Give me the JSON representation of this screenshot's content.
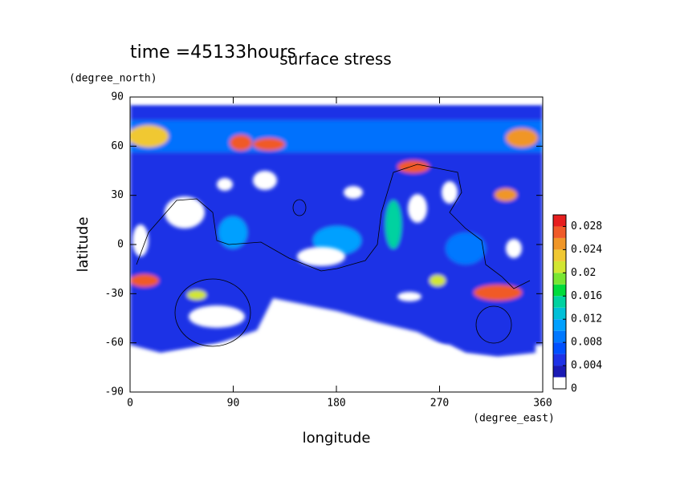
{
  "chart_data": {
    "type": "contour",
    "title": "surface stress",
    "annotation": "time =45133hours",
    "x_label": "longitude",
    "x_unit": "(degree_east)",
    "y_label": "latitude",
    "y_unit": "(degree_north)",
    "xlim": [
      0,
      360
    ],
    "xticks": [
      0,
      90,
      180,
      270,
      360
    ],
    "ylim": [
      -90,
      90
    ],
    "yticks": [
      -90,
      -60,
      -30,
      0,
      30,
      60,
      90
    ],
    "colorbar": {
      "lim": [
        0,
        0.03
      ],
      "ticks": [
        0,
        0.004,
        0.008,
        0.012,
        0.016,
        0.02,
        0.024,
        0.028
      ],
      "levels": [
        0,
        0.002,
        0.004,
        0.006,
        0.008,
        0.01,
        0.012,
        0.014,
        0.016,
        0.018,
        0.02,
        0.022,
        0.024,
        0.026,
        0.028,
        0.03
      ],
      "colors": [
        "#ffffff",
        "#1a1ab4",
        "#1e32e6",
        "#0050ff",
        "#0078ff",
        "#00a0ff",
        "#00c0d8",
        "#00d2a0",
        "#00dc3c",
        "#78e632",
        "#d2e632",
        "#f0c832",
        "#f09628",
        "#f05a28",
        "#e61e1e"
      ]
    }
  }
}
